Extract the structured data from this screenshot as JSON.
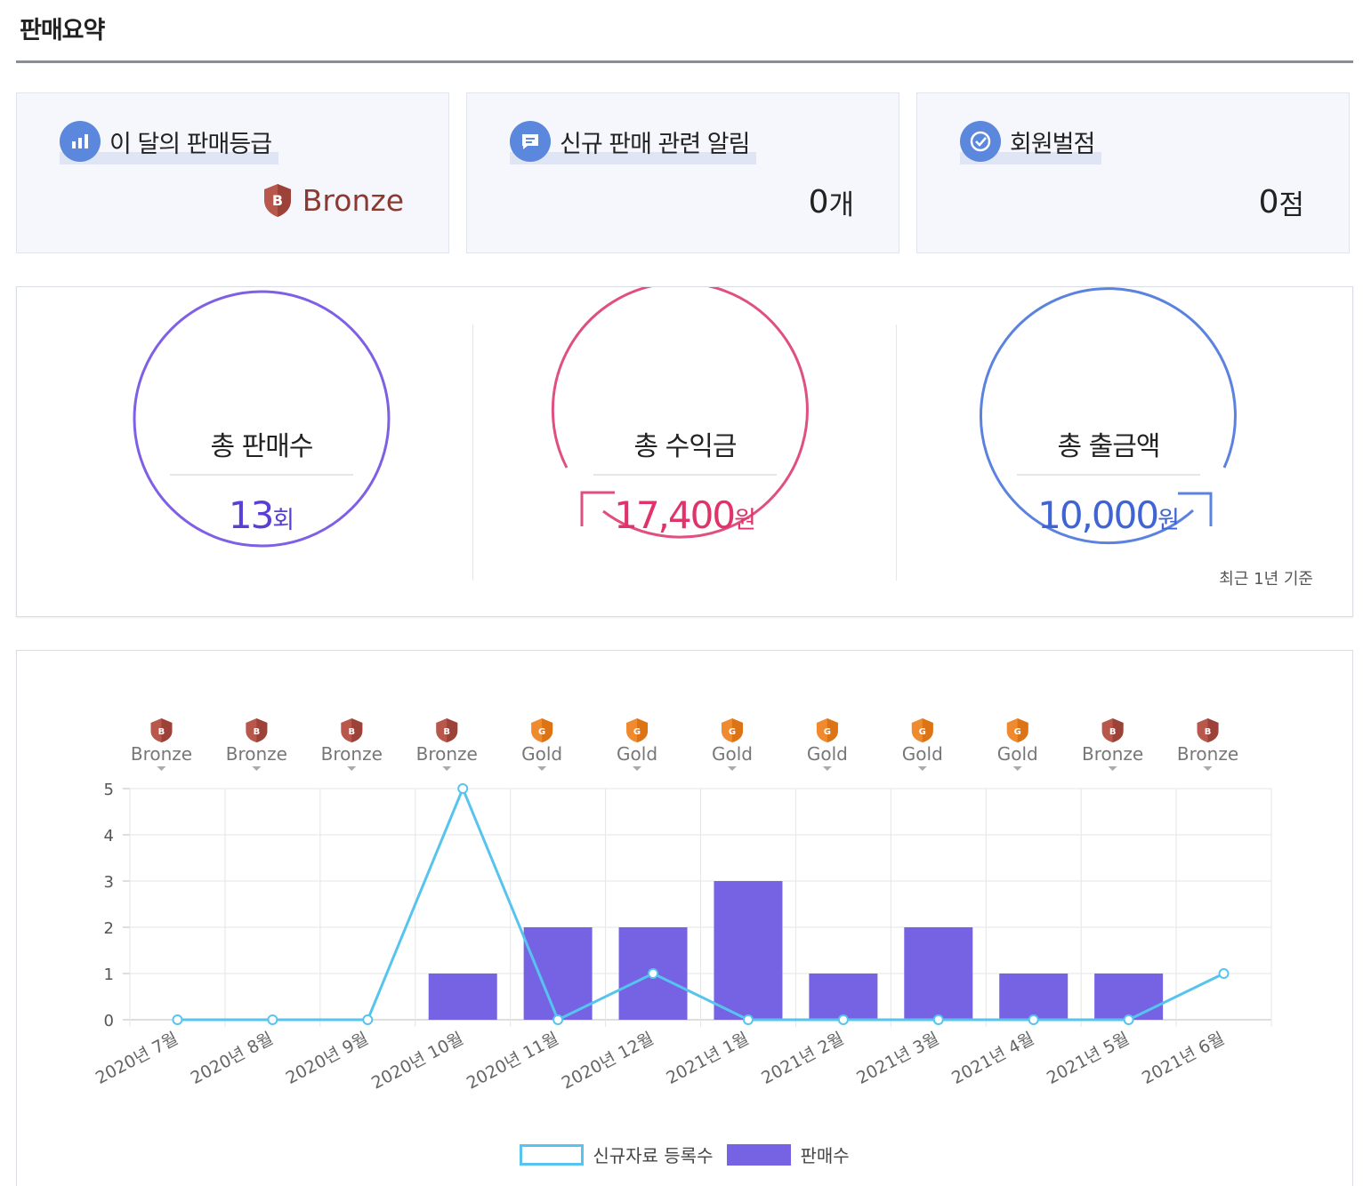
{
  "page": {
    "title": "판매요약"
  },
  "cards": [
    {
      "label": "이 달의 판매등급",
      "icon": "bar-chart-icon",
      "value": "Bronze",
      "badge_letter": "B",
      "color": "#8a3a30"
    },
    {
      "label": "신규 판매 관련 알림",
      "icon": "message-icon",
      "value": "0",
      "unit": "개"
    },
    {
      "label": "회원벌점",
      "icon": "check-circle-icon",
      "value": "0",
      "unit": "점"
    }
  ],
  "stats": [
    {
      "label": "총 판매수",
      "value": "13",
      "unit": "회",
      "color": "#5a3fd6",
      "ring_color": "#7e5fe6"
    },
    {
      "label": "총 수익금",
      "value": "17,400",
      "unit": "원",
      "color": "#e0336a",
      "ring_color": "#e0507f"
    },
    {
      "label": "총 출금액",
      "value": "10,000",
      "unit": "원",
      "color": "#3f64d4",
      "ring_color": "#5b82df"
    }
  ],
  "stats_note": "최근 1년 기준",
  "colors": {
    "bronze_badge": "#b8574c",
    "gold_badge": "#f08a2e",
    "line": "#56c4ee",
    "bar": "#7563e4"
  },
  "chart_data": {
    "type": "bar",
    "categories": [
      "2020년 7월",
      "2020년 8월",
      "2020년 9월",
      "2020년 10월",
      "2020년 11월",
      "2020년 12월",
      "2021년 1월",
      "2021년 2월",
      "2021년 3월",
      "2021년 4월",
      "2021년 5월",
      "2021년 6월"
    ],
    "grades": [
      "Bronze",
      "Bronze",
      "Bronze",
      "Bronze",
      "Gold",
      "Gold",
      "Gold",
      "Gold",
      "Gold",
      "Gold",
      "Bronze",
      "Bronze"
    ],
    "series": [
      {
        "name": "신규자료 등록수",
        "type": "line",
        "values": [
          0,
          0,
          0,
          5,
          0,
          1,
          0,
          0,
          0,
          0,
          0,
          1
        ]
      },
      {
        "name": "판매수",
        "type": "bar",
        "values": [
          0,
          0,
          0,
          1,
          2,
          2,
          3,
          1,
          2,
          1,
          1,
          0
        ]
      }
    ],
    "ylim": [
      0,
      5
    ],
    "yticks": [
      "0",
      "1",
      "2",
      "3",
      "4",
      "5"
    ],
    "grid": true,
    "legend": "bottom-center"
  }
}
